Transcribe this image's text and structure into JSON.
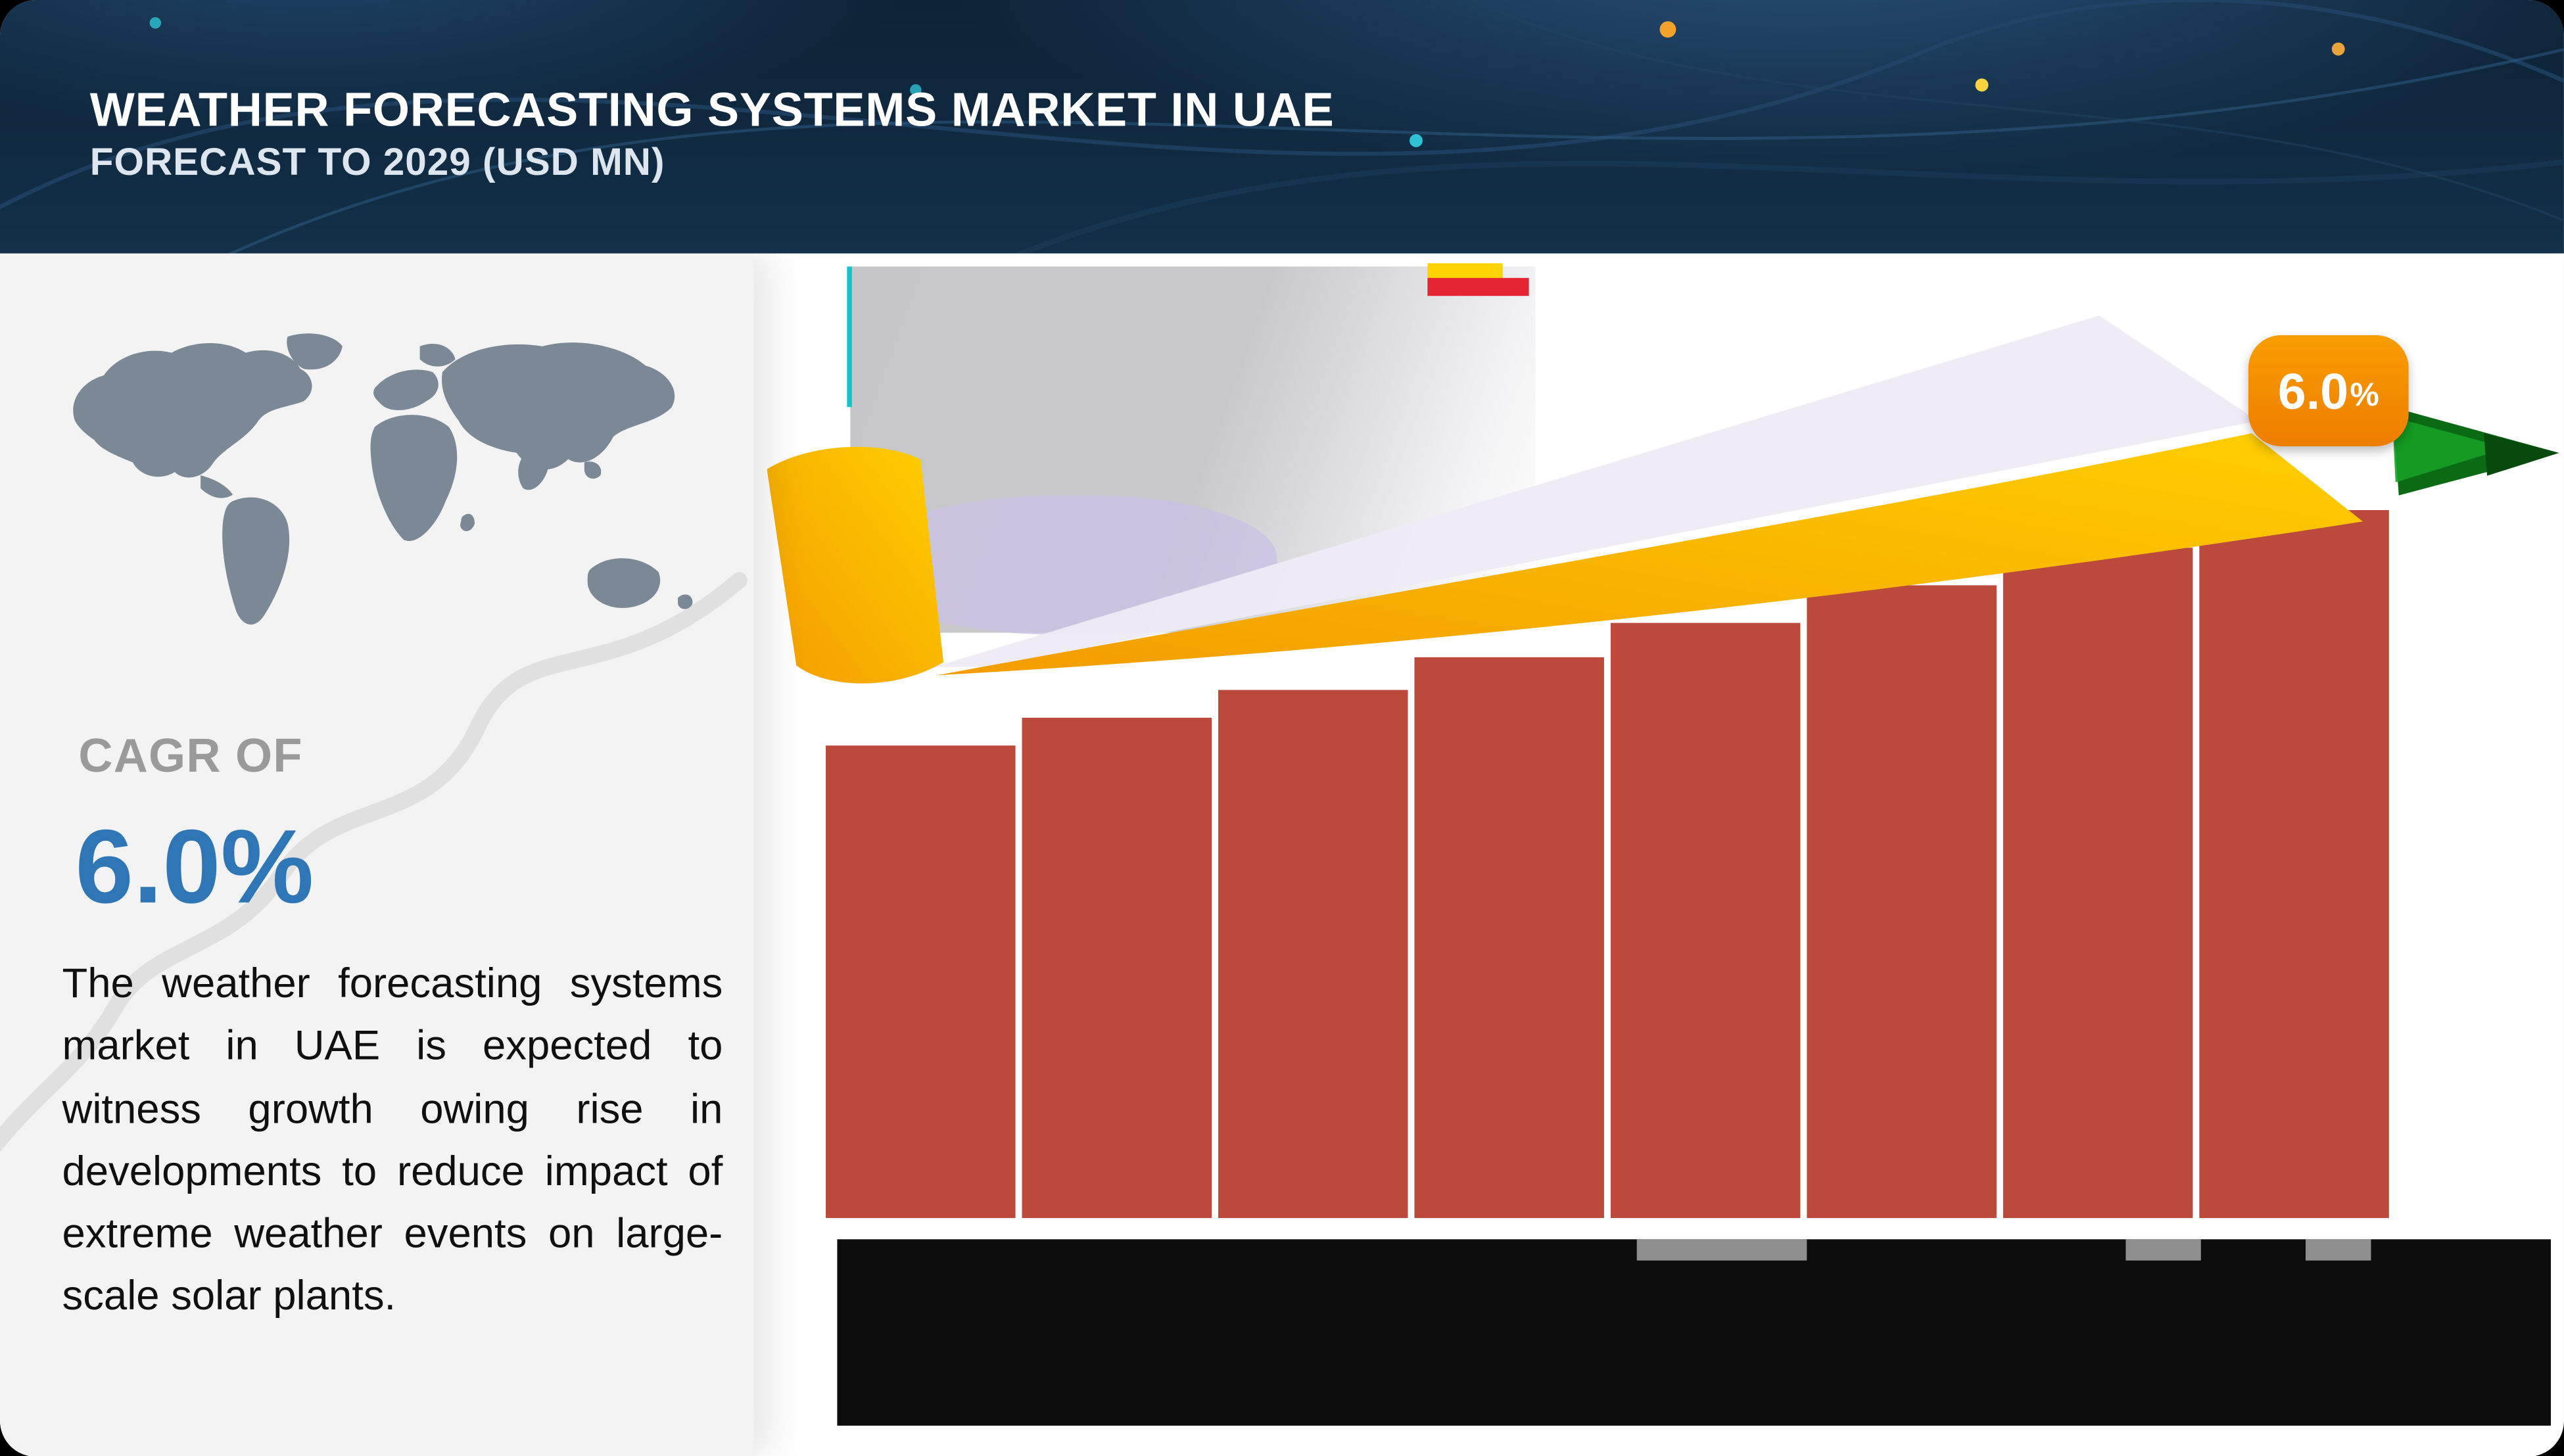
{
  "header": {
    "title": "WEATHER FORECASTING SYSTEMS MARKET IN UAE",
    "subtitle": "FORECAST TO 2029 (USD MN)"
  },
  "left_panel": {
    "cagr_label": "CAGR OF",
    "cagr_value": "6.0%",
    "description": "The weather forecasting systems market in UAE is expected to witness growth owing rise in developments to reduce impact of extreme weather events on large-scale solar plants."
  },
  "growth_badge": {
    "value": "6.0",
    "unit": "%"
  },
  "colors": {
    "header_navy": "#102b45",
    "cagr_blue": "#2e76b5",
    "bar_color": "#bb4a3c",
    "ribbon_gold": "#ffb800",
    "badge_orange": "#ee7d00",
    "arrow_green": "#0b6b15",
    "band_black": "#0c0c0c",
    "map_gray": "#7b8896"
  },
  "chart_data": {
    "type": "bar",
    "title": "Weather Forecasting Systems Market in UAE, Forecast to 2029 (USD MN)",
    "categories": [
      "",
      "",
      "",
      "",
      "",
      "",
      "",
      ""
    ],
    "values": [
      100,
      106,
      112,
      119,
      126,
      134,
      142,
      150
    ],
    "values_are_relative_estimates": true,
    "x_axis_labels_hidden": true,
    "xlabel": "",
    "ylabel": "",
    "legend": "none",
    "grid": "off",
    "cagr_label": "6.0%",
    "bar_color": "#bb4a3c"
  }
}
